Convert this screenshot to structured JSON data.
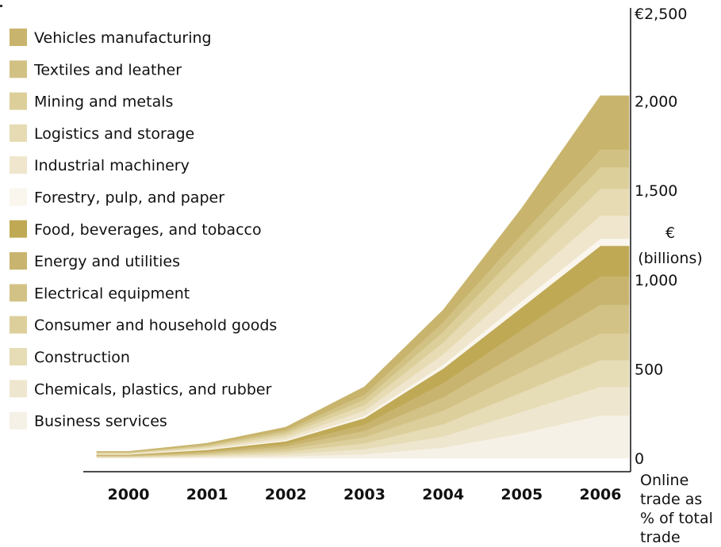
{
  "chart_data": {
    "type": "area",
    "stacked": true,
    "x": [
      "2000",
      "2001",
      "2002",
      "2003",
      "2004",
      "2005",
      "2006"
    ],
    "y_ticks": [
      "€2,500",
      "2,000",
      "1,500",
      "1,000",
      "500",
      "0"
    ],
    "y_tick_values": [
      2500,
      2000,
      1500,
      1000,
      500,
      0
    ],
    "ylim": [
      0,
      2500
    ],
    "ylabel_lines": [
      "€",
      "(billions)"
    ],
    "xlabel_lines": [
      "Online",
      "trade as",
      "% of total",
      "trade"
    ],
    "legend_position": "top-left",
    "grid": false,
    "series": [
      {
        "name": "Business services",
        "color": "#f6f1e6",
        "values": [
          3,
          6,
          10,
          22,
          60,
          140,
          240
        ]
      },
      {
        "name": "Chemicals, plastics, and rubber",
        "color": "#efe6cf",
        "values": [
          3,
          7,
          13,
          30,
          62,
          120,
          160
        ]
      },
      {
        "name": "Construction",
        "color": "#e6dcb5",
        "values": [
          3,
          6,
          14,
          32,
          70,
          110,
          150
        ]
      },
      {
        "name": "Consumer and household goods",
        "color": "#ddcf9b",
        "values": [
          3,
          7,
          14,
          35,
          75,
          115,
          150
        ]
      },
      {
        "name": "Electrical equipment",
        "color": "#d3c286",
        "values": [
          3,
          7,
          15,
          35,
          75,
          115,
          160
        ]
      },
      {
        "name": "Energy and utilities",
        "color": "#c9b46f",
        "values": [
          3,
          7,
          14,
          35,
          80,
          120,
          160
        ]
      },
      {
        "name": "Food, beverages, and tobacco",
        "color": "#bfa955",
        "values": [
          3,
          7,
          15,
          36,
          80,
          125,
          170
        ]
      },
      {
        "name": "Forestry, pulp, and paper",
        "color": "#faf6ed",
        "values": [
          2,
          4,
          7,
          12,
          22,
          35,
          40
        ]
      },
      {
        "name": "Industrial machinery",
        "color": "#efe6cd",
        "values": [
          3,
          7,
          15,
          30,
          60,
          95,
          130
        ]
      },
      {
        "name": "Logistics and storage",
        "color": "#e6dbb2",
        "values": [
          3,
          7,
          15,
          32,
          65,
          105,
          150
        ]
      },
      {
        "name": "Mining and metals",
        "color": "#dccf9a",
        "values": [
          3,
          6,
          13,
          30,
          60,
          95,
          120
        ]
      },
      {
        "name": "Textiles and leather",
        "color": "#d1c183",
        "values": [
          3,
          6,
          13,
          28,
          55,
          80,
          100
        ]
      },
      {
        "name": "Vehicles manufacturing",
        "color": "#c8b46c",
        "values": [
          3,
          7,
          16,
          43,
          66,
          145,
          300
        ]
      }
    ]
  }
}
